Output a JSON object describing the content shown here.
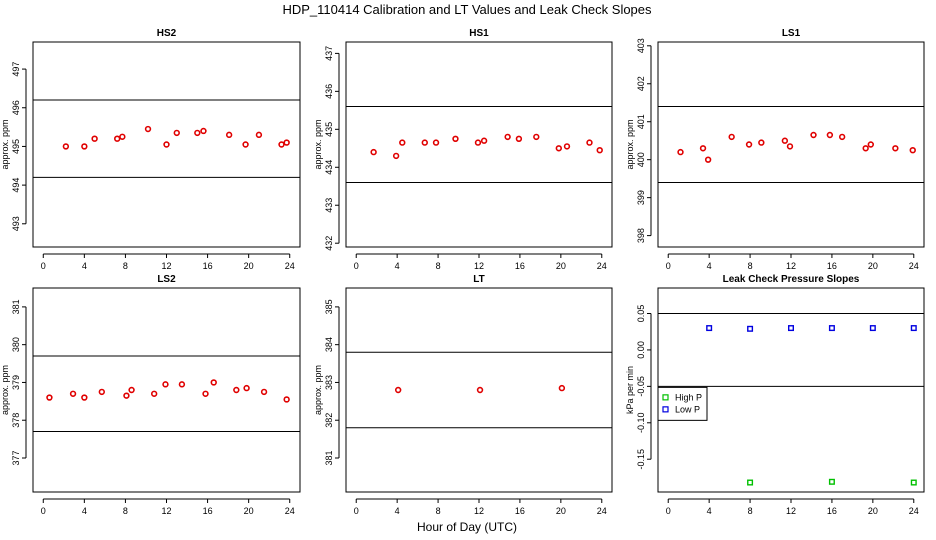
{
  "figure": {
    "title": "HDP_110414  Calibration and LT Values and Leak Check Slopes",
    "xlabel": "Hour of Day (UTC)"
  },
  "chart_data": [
    {
      "type": "scatter",
      "title": "HS2",
      "ylabel": "approx. ppm",
      "xlim": [
        -1,
        25
      ],
      "ylim": [
        492.4,
        497.7
      ],
      "xticks": [
        0,
        4,
        8,
        12,
        16,
        20,
        24
      ],
      "yticks": [
        493,
        494,
        495,
        496,
        497
      ],
      "hlines": [
        496.2,
        494.2
      ],
      "series": [
        {
          "color": "#e00000",
          "marker": "circle",
          "x": [
            2.2,
            4.0,
            5.0,
            7.2,
            7.7,
            10.2,
            12.0,
            13.0,
            15.0,
            15.6,
            18.1,
            19.7,
            21.0,
            23.2,
            23.7
          ],
          "y": [
            495.0,
            495.0,
            495.2,
            495.2,
            495.25,
            495.45,
            495.05,
            495.35,
            495.35,
            495.4,
            495.3,
            495.05,
            495.3,
            495.05,
            495.1
          ]
        }
      ]
    },
    {
      "type": "scatter",
      "title": "HS1",
      "ylabel": "approx. ppm",
      "xlim": [
        -1,
        25
      ],
      "ylim": [
        431.9,
        437.3
      ],
      "xticks": [
        0,
        4,
        8,
        12,
        16,
        20,
        24
      ],
      "yticks": [
        432,
        433,
        434,
        435,
        436,
        437
      ],
      "hlines": [
        435.6,
        433.6
      ],
      "series": [
        {
          "color": "#e00000",
          "marker": "circle",
          "x": [
            1.7,
            3.9,
            4.5,
            6.7,
            7.8,
            9.7,
            11.9,
            12.5,
            14.8,
            15.9,
            17.6,
            19.8,
            20.6,
            22.8,
            23.8
          ],
          "y": [
            434.4,
            434.3,
            434.65,
            434.65,
            434.65,
            434.75,
            434.65,
            434.7,
            434.8,
            434.75,
            434.8,
            434.5,
            434.55,
            434.65,
            434.45
          ]
        }
      ]
    },
    {
      "type": "scatter",
      "title": "LS1",
      "ylabel": "approx. ppm",
      "xlim": [
        -1,
        25
      ],
      "ylim": [
        397.7,
        403.1
      ],
      "xticks": [
        0,
        4,
        8,
        12,
        16,
        20,
        24
      ],
      "yticks": [
        398,
        399,
        400,
        401,
        402,
        403
      ],
      "hlines": [
        401.4,
        399.4
      ],
      "series": [
        {
          "color": "#e00000",
          "marker": "circle",
          "x": [
            1.2,
            3.4,
            3.9,
            6.2,
            7.9,
            9.1,
            11.4,
            11.9,
            14.2,
            15.8,
            17.0,
            19.3,
            19.8,
            22.2,
            23.9
          ],
          "y": [
            400.2,
            400.3,
            400.0,
            400.6,
            400.4,
            400.45,
            400.5,
            400.35,
            400.65,
            400.65,
            400.6,
            400.3,
            400.4,
            400.3,
            400.25
          ]
        }
      ]
    },
    {
      "type": "scatter",
      "title": "LS2",
      "ylabel": "approx. ppm",
      "xlim": [
        -1,
        25
      ],
      "ylim": [
        376.1,
        381.5
      ],
      "xticks": [
        0,
        4,
        8,
        12,
        16,
        20,
        24
      ],
      "yticks": [
        377,
        378,
        379,
        380,
        381
      ],
      "hlines": [
        379.7,
        377.7
      ],
      "series": [
        {
          "color": "#e00000",
          "marker": "circle",
          "x": [
            0.6,
            2.9,
            4.0,
            5.7,
            8.1,
            8.6,
            10.8,
            11.9,
            13.5,
            15.8,
            16.6,
            18.8,
            19.8,
            21.5,
            23.7
          ],
          "y": [
            378.6,
            378.7,
            378.6,
            378.75,
            378.65,
            378.8,
            378.7,
            378.95,
            378.95,
            378.7,
            379.0,
            378.8,
            378.85,
            378.75,
            378.55
          ]
        }
      ]
    },
    {
      "type": "scatter",
      "title": "LT",
      "ylabel": "approx. ppm",
      "xlim": [
        -1,
        25
      ],
      "ylim": [
        380.1,
        385.5
      ],
      "xticks": [
        0,
        4,
        8,
        12,
        16,
        20,
        24
      ],
      "yticks": [
        381,
        382,
        383,
        384,
        385
      ],
      "hlines": [
        383.8,
        381.8
      ],
      "series": [
        {
          "color": "#e00000",
          "marker": "circle",
          "x": [
            4.1,
            12.1,
            20.1
          ],
          "y": [
            382.8,
            382.8,
            382.85
          ]
        }
      ]
    },
    {
      "type": "scatter",
      "title": "Leak Check Pressure Slopes",
      "ylabel": "kPa per min",
      "xlim": [
        -1,
        25
      ],
      "ylim": [
        -0.195,
        0.085
      ],
      "xticks": [
        0,
        4,
        8,
        12,
        16,
        20,
        24
      ],
      "yticks": [
        -0.15,
        -0.1,
        -0.05,
        0.0,
        0.05
      ],
      "ytick_labels": [
        "-0.15",
        "-0.10",
        "-0.05",
        "0.00",
        "0.05"
      ],
      "hlines": [
        0.05,
        -0.05
      ],
      "legend": {
        "position": "left",
        "entries": [
          "High P",
          "Low P"
        ]
      },
      "series": [
        {
          "name": "High P",
          "color": "#00c000",
          "marker": "square",
          "x": [
            8,
            16,
            24
          ],
          "y": [
            -0.182,
            -0.181,
            -0.182
          ]
        },
        {
          "name": "Low P",
          "color": "#0000e0",
          "marker": "square",
          "x": [
            4,
            8,
            12,
            16,
            20,
            24
          ],
          "y": [
            0.03,
            0.029,
            0.03,
            0.03,
            0.03,
            0.03
          ]
        }
      ]
    }
  ]
}
